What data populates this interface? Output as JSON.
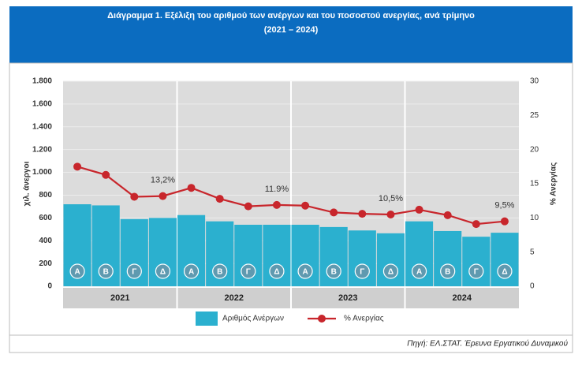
{
  "chart_data": {
    "type": "bar_line",
    "title": "Διάγραμμα 1. Εξέλιξη του αριθμού των ανέργων και του ποσοστού ανεργίας, ανά τρίμηνο",
    "subtitle": "(2021 – 2024)",
    "y_label": "χιλ. άνεργοι",
    "y2_label": "% Ανεργίας",
    "source": "Πηγή: ΕΛ.ΣΤΑΤ. Έρευνα Εργατικού Δυναμικού",
    "groups": [
      "2021",
      "2022",
      "2023",
      "2024"
    ],
    "categories": [
      "Α",
      "Β",
      "Γ",
      "Δ",
      "Α",
      "Β",
      "Γ",
      "Δ",
      "Α",
      "Β",
      "Γ",
      "Δ",
      "Α",
      "Β",
      "Γ",
      "Δ"
    ],
    "ylim": [
      0,
      1800
    ],
    "yticks": [
      0,
      200,
      400,
      600,
      800,
      {
        "value": 1000,
        "label": "1.000"
      },
      {
        "value": 1200,
        "label": "1.200"
      },
      {
        "value": 1400,
        "label": "1.400"
      },
      {
        "value": 1600,
        "label": "1.600"
      },
      {
        "value": 1800,
        "label": "1.800"
      }
    ],
    "y2lim": [
      0,
      30
    ],
    "y2ticks": [
      0,
      5,
      10,
      15,
      20,
      25,
      30
    ],
    "series": [
      {
        "name": "Αριθμός Ανέργων",
        "color": "#2bb0cf",
        "kind": "bar",
        "values": [
          720,
          710,
          590,
          600,
          625,
          570,
          540,
          540,
          540,
          520,
          490,
          465,
          570,
          485,
          435,
          470
        ]
      },
      {
        "name": "% Ανεργίας",
        "color": "#c8262c",
        "kind": "line",
        "axis": "y2",
        "values": [
          17.5,
          16.3,
          13.1,
          13.2,
          14.4,
          12.8,
          11.7,
          11.9,
          11.8,
          10.8,
          10.6,
          10.5,
          11.2,
          10.4,
          9.1,
          9.5
        ],
        "value_labels": [
          null,
          null,
          null,
          "13,2%",
          null,
          null,
          null,
          "11.9%",
          null,
          null,
          null,
          "10,5%",
          null,
          null,
          null,
          "9,5%"
        ]
      }
    ]
  }
}
